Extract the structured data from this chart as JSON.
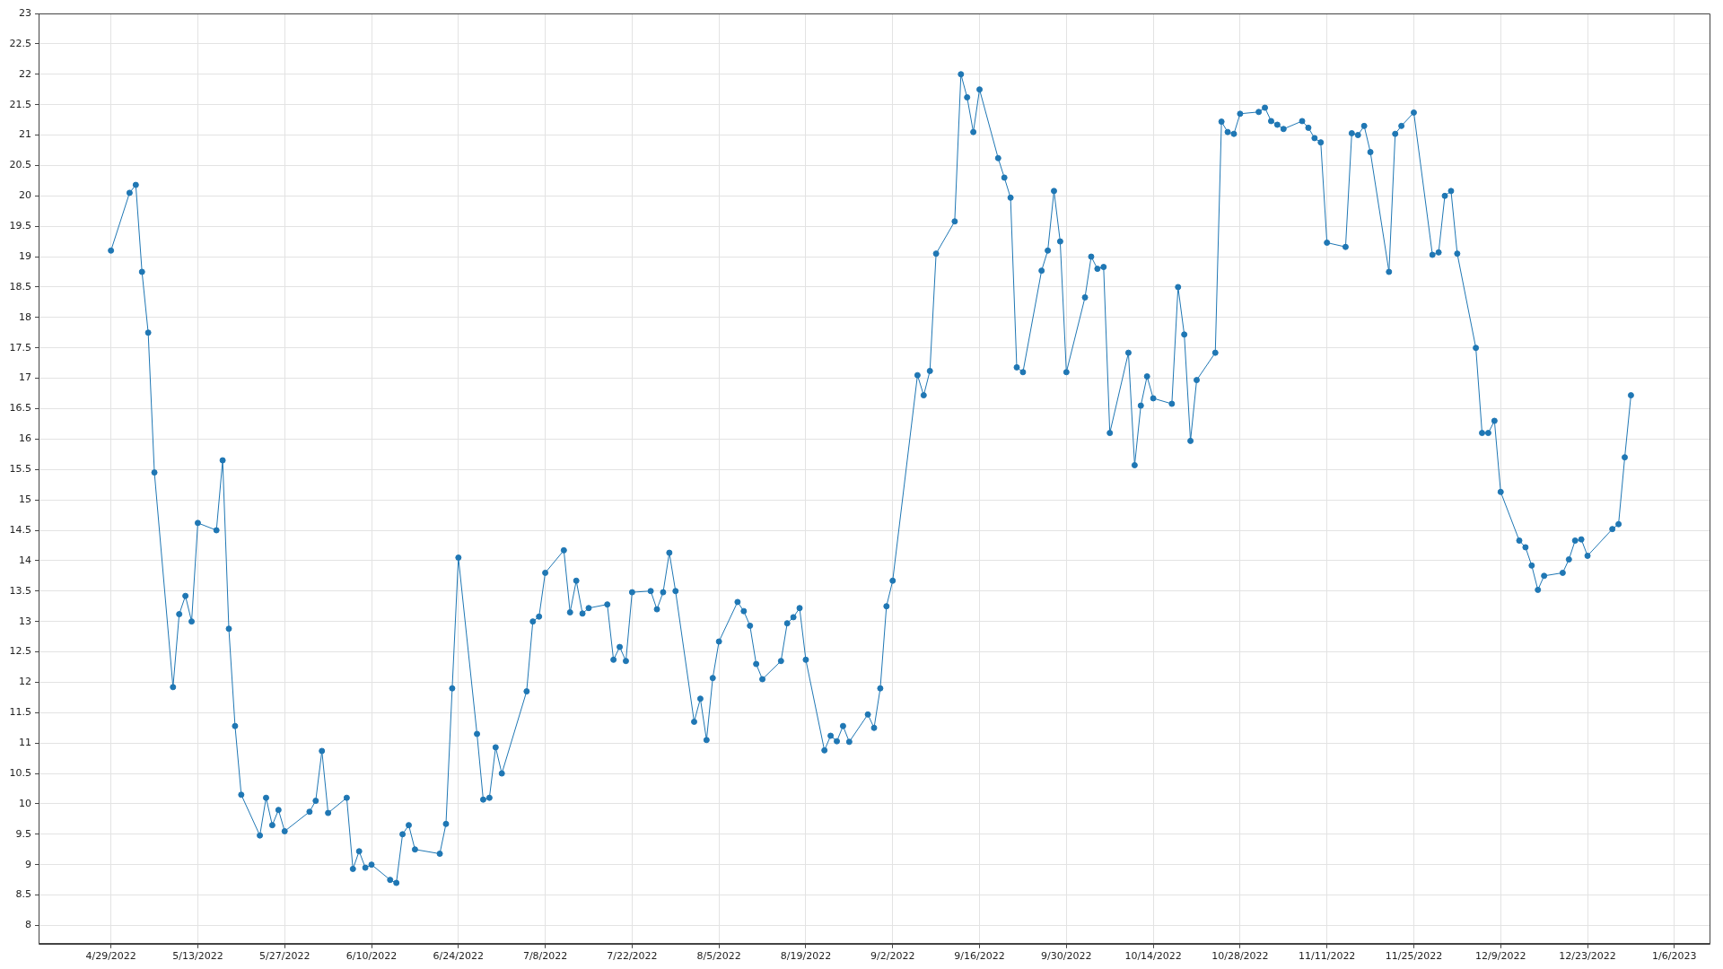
{
  "chart_data": {
    "type": "line",
    "marker": "circle",
    "grid": true,
    "color": "#1f77b4",
    "x": [
      "2022-04-29",
      "2022-05-02",
      "2022-05-03",
      "2022-05-04",
      "2022-05-05",
      "2022-05-06",
      "2022-05-09",
      "2022-05-10",
      "2022-05-11",
      "2022-05-12",
      "2022-05-13",
      "2022-05-16",
      "2022-05-17",
      "2022-05-18",
      "2022-05-19",
      "2022-05-20",
      "2022-05-23",
      "2022-05-24",
      "2022-05-25",
      "2022-05-26",
      "2022-05-27",
      "2022-05-31",
      "2022-06-01",
      "2022-06-02",
      "2022-06-03",
      "2022-06-06",
      "2022-06-07",
      "2022-06-08",
      "2022-06-09",
      "2022-06-10",
      "2022-06-13",
      "2022-06-14",
      "2022-06-15",
      "2022-06-16",
      "2022-06-17",
      "2022-06-21",
      "2022-06-22",
      "2022-06-23",
      "2022-06-24",
      "2022-06-27",
      "2022-06-28",
      "2022-06-29",
      "2022-06-30",
      "2022-07-01",
      "2022-07-05",
      "2022-07-06",
      "2022-07-07",
      "2022-07-08",
      "2022-07-11",
      "2022-07-12",
      "2022-07-13",
      "2022-07-14",
      "2022-07-15",
      "2022-07-18",
      "2022-07-19",
      "2022-07-20",
      "2022-07-21",
      "2022-07-22",
      "2022-07-25",
      "2022-07-26",
      "2022-07-27",
      "2022-07-28",
      "2022-07-29",
      "2022-08-01",
      "2022-08-02",
      "2022-08-03",
      "2022-08-04",
      "2022-08-05",
      "2022-08-08",
      "2022-08-09",
      "2022-08-10",
      "2022-08-11",
      "2022-08-12",
      "2022-08-15",
      "2022-08-16",
      "2022-08-17",
      "2022-08-18",
      "2022-08-19",
      "2022-08-22",
      "2022-08-23",
      "2022-08-24",
      "2022-08-25",
      "2022-08-26",
      "2022-08-29",
      "2022-08-30",
      "2022-08-31",
      "2022-09-01",
      "2022-09-02",
      "2022-09-06",
      "2022-09-07",
      "2022-09-08",
      "2022-09-09",
      "2022-09-12",
      "2022-09-13",
      "2022-09-14",
      "2022-09-15",
      "2022-09-16",
      "2022-09-19",
      "2022-09-20",
      "2022-09-21",
      "2022-09-22",
      "2022-09-23",
      "2022-09-26",
      "2022-09-27",
      "2022-09-28",
      "2022-09-29",
      "2022-09-30",
      "2022-10-03",
      "2022-10-04",
      "2022-10-05",
      "2022-10-06",
      "2022-10-07",
      "2022-10-10",
      "2022-10-11",
      "2022-10-12",
      "2022-10-13",
      "2022-10-14",
      "2022-10-17",
      "2022-10-18",
      "2022-10-19",
      "2022-10-20",
      "2022-10-21",
      "2022-10-24",
      "2022-10-25",
      "2022-10-26",
      "2022-10-27",
      "2022-10-28",
      "2022-10-31",
      "2022-11-01",
      "2022-11-02",
      "2022-11-03",
      "2022-11-04",
      "2022-11-07",
      "2022-11-08",
      "2022-11-09",
      "2022-11-10",
      "2022-11-11",
      "2022-11-14",
      "2022-11-15",
      "2022-11-16",
      "2022-11-17",
      "2022-11-18",
      "2022-11-21",
      "2022-11-22",
      "2022-11-23",
      "2022-11-25",
      "2022-11-28",
      "2022-11-29",
      "2022-11-30",
      "2022-12-01",
      "2022-12-02",
      "2022-12-05",
      "2022-12-06",
      "2022-12-07",
      "2022-12-08",
      "2022-12-09",
      "2022-12-12",
      "2022-12-13",
      "2022-12-14",
      "2022-12-15",
      "2022-12-16",
      "2022-12-19",
      "2022-12-20",
      "2022-12-21",
      "2022-12-22",
      "2022-12-23",
      "2022-12-27",
      "2022-12-28",
      "2022-12-29",
      "2022-12-30"
    ],
    "values": [
      19.1,
      20.05,
      20.18,
      18.75,
      17.75,
      15.45,
      11.92,
      13.12,
      13.42,
      13.0,
      14.62,
      14.5,
      15.65,
      12.88,
      11.28,
      10.15,
      9.48,
      10.1,
      9.65,
      9.9,
      9.55,
      9.87,
      10.05,
      10.87,
      9.85,
      10.1,
      8.93,
      9.22,
      8.95,
      9.0,
      8.75,
      8.7,
      9.5,
      9.65,
      9.25,
      9.18,
      9.67,
      11.9,
      14.05,
      11.15,
      10.07,
      10.1,
      10.93,
      10.5,
      11.85,
      13.0,
      13.08,
      13.8,
      14.17,
      13.15,
      13.67,
      13.13,
      13.22,
      13.28,
      12.37,
      12.58,
      12.35,
      13.48,
      13.5,
      13.2,
      13.48,
      14.13,
      13.5,
      11.35,
      11.73,
      11.05,
      12.07,
      12.67,
      13.32,
      13.17,
      12.93,
      12.3,
      12.05,
      12.35,
      12.97,
      13.07,
      13.22,
      12.37,
      10.88,
      11.12,
      11.03,
      11.28,
      11.02,
      11.47,
      11.25,
      11.9,
      13.25,
      13.67,
      17.05,
      16.72,
      17.12,
      19.05,
      19.58,
      22.0,
      21.62,
      21.05,
      21.75,
      20.62,
      20.3,
      19.97,
      17.18,
      17.1,
      18.77,
      19.1,
      20.08,
      19.25,
      17.1,
      18.33,
      19.0,
      18.8,
      18.83,
      16.1,
      17.42,
      15.57,
      16.55,
      17.03,
      16.67,
      16.58,
      18.5,
      17.72,
      15.97,
      16.97,
      17.42,
      21.22,
      21.05,
      21.02,
      21.35,
      21.38,
      21.45,
      21.23,
      21.17,
      21.1,
      21.23,
      21.12,
      20.95,
      20.88,
      19.23,
      19.16,
      21.03,
      21.0,
      21.15,
      20.72,
      18.75,
      21.02,
      21.15,
      21.37,
      19.03,
      19.07,
      20.0,
      20.08,
      19.05,
      17.5,
      16.1,
      16.1,
      16.3,
      15.13,
      14.33,
      14.22,
      13.92,
      13.52,
      13.75,
      13.8,
      14.02,
      14.33,
      14.35,
      14.08,
      14.52,
      14.6,
      15.7,
      16.72
    ],
    "xlim": [
      "2022-04-17T08:00",
      "2023-01-11T16:00"
    ],
    "xticks": [
      {
        "value": "2022-04-29",
        "label": "4/29/2022"
      },
      {
        "value": "2022-05-13",
        "label": "5/13/2022"
      },
      {
        "value": "2022-05-27",
        "label": "5/27/2022"
      },
      {
        "value": "2022-06-10",
        "label": "6/10/2022"
      },
      {
        "value": "2022-06-24",
        "label": "6/24/2022"
      },
      {
        "value": "2022-07-08",
        "label": "7/8/2022"
      },
      {
        "value": "2022-07-22",
        "label": "7/22/2022"
      },
      {
        "value": "2022-08-05",
        "label": "8/5/2022"
      },
      {
        "value": "2022-08-19",
        "label": "8/19/2022"
      },
      {
        "value": "2022-09-02",
        "label": "9/2/2022"
      },
      {
        "value": "2022-09-16",
        "label": "9/16/2022"
      },
      {
        "value": "2022-09-30",
        "label": "9/30/2022"
      },
      {
        "value": "2022-10-14",
        "label": "10/14/2022"
      },
      {
        "value": "2022-10-28",
        "label": "10/28/2022"
      },
      {
        "value": "2022-11-11",
        "label": "11/11/2022"
      },
      {
        "value": "2022-11-25",
        "label": "11/25/2022"
      },
      {
        "value": "2022-12-09",
        "label": "12/9/2022"
      },
      {
        "value": "2022-12-23",
        "label": "12/23/2022"
      },
      {
        "value": "2023-01-06",
        "label": "1/6/2023"
      }
    ],
    "ylim": [
      7.7,
      23
    ],
    "yticks": [
      8,
      8.5,
      9,
      9.5,
      10,
      10.5,
      11,
      11.5,
      12,
      12.5,
      13,
      13.5,
      14,
      14.5,
      15,
      15.5,
      16,
      16.5,
      17,
      17.5,
      18,
      18.5,
      19,
      19.5,
      20,
      20.5,
      21,
      21.5,
      22,
      22.5,
      23
    ]
  }
}
